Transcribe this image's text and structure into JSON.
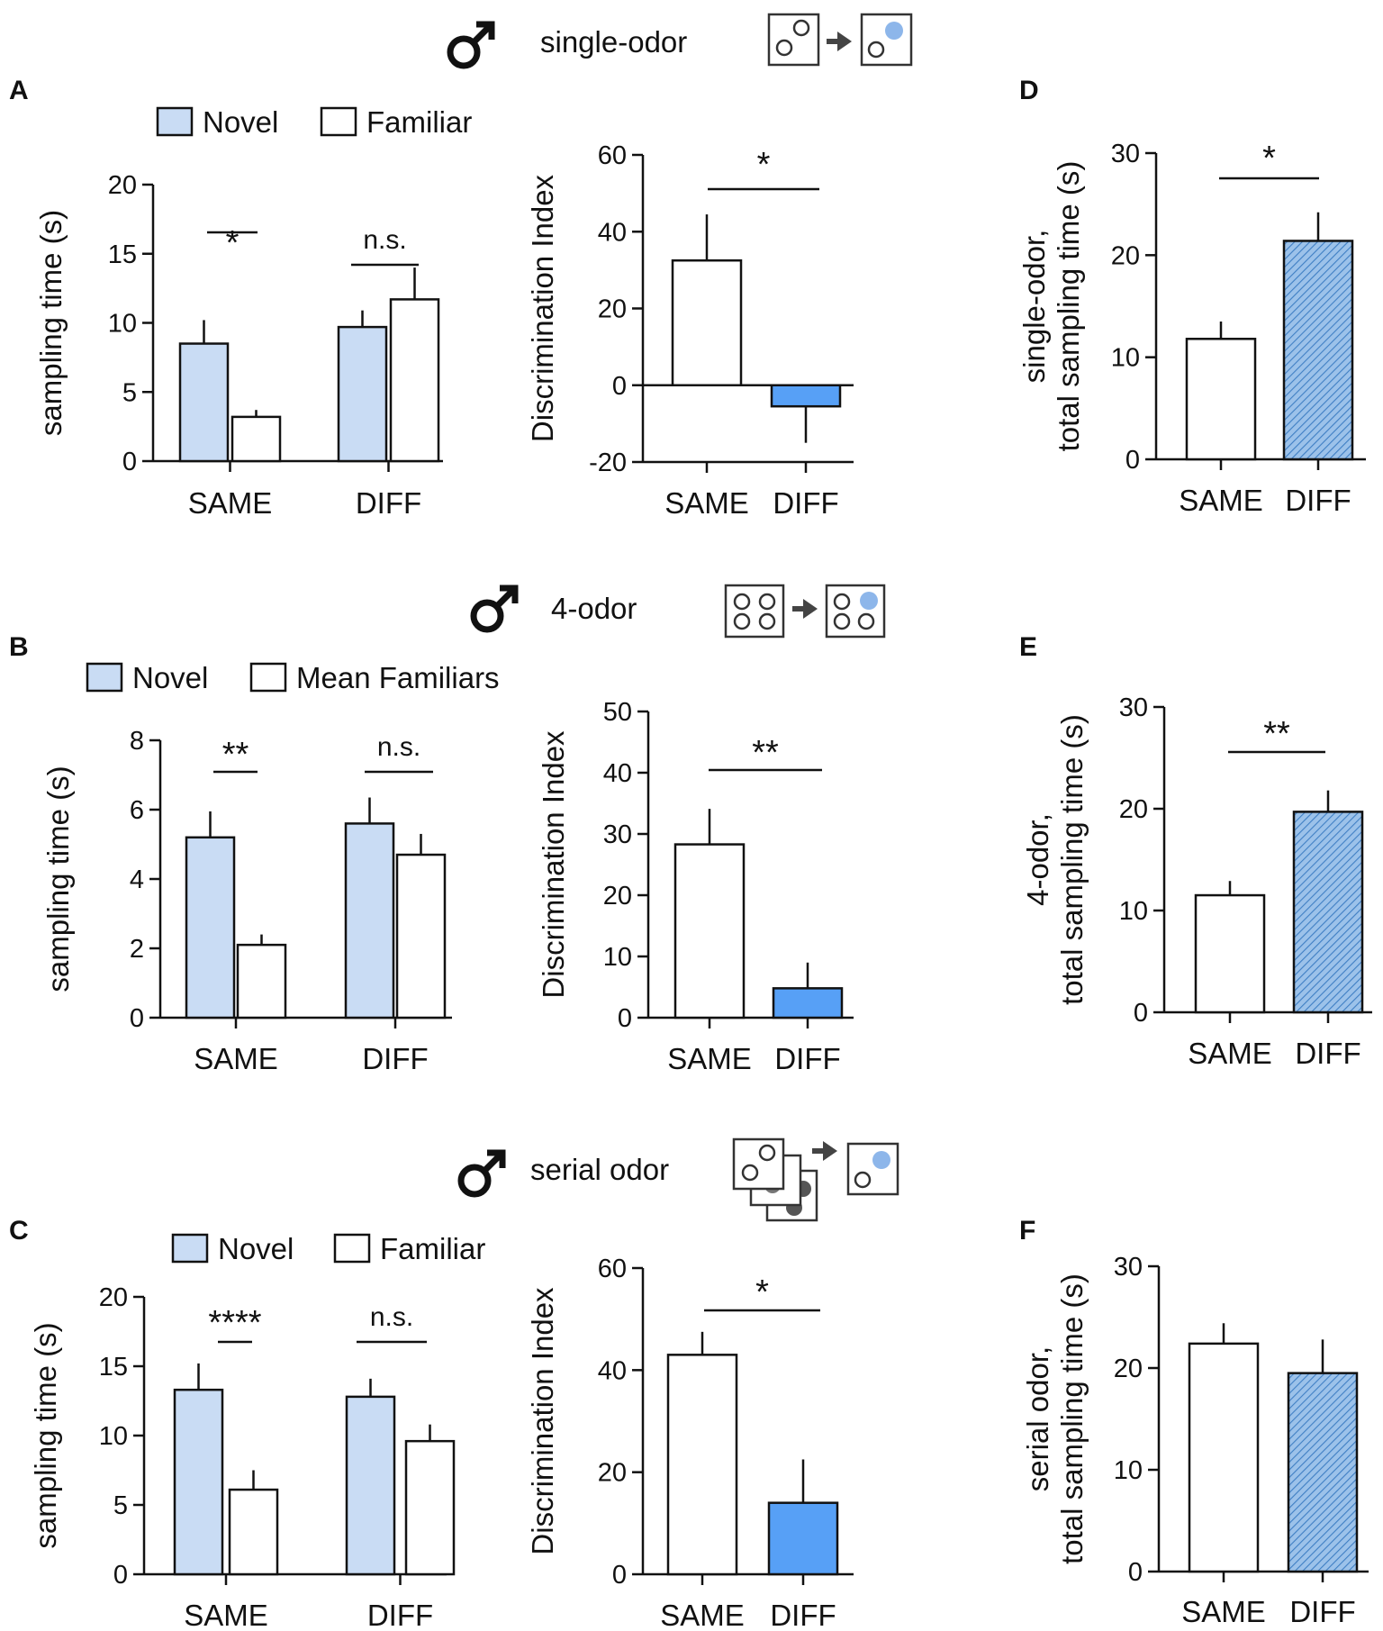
{
  "colors": {
    "novel": "#c9dcf4",
    "familiar": "#ffffff",
    "di_diff": "#57a0f6",
    "hatch_diff": "#9cc2ea",
    "hatch_line": "#3f7fc4",
    "odor_dot": "#8db6ea",
    "stroke": "#111111"
  },
  "headers": [
    {
      "symbol": "♂",
      "text": "single-odor",
      "icon": "single-odor-schematic"
    },
    {
      "symbol": "♂",
      "text": "4-odor",
      "icon": "4-odor-schematic"
    },
    {
      "symbol": "♂",
      "text": "serial odor",
      "icon": "serial-odor-schematic"
    }
  ],
  "chart_data": [
    {
      "panel": "A",
      "type": "bar",
      "title": "",
      "ylabel": "sampling time (s)",
      "ylim": [
        0,
        20
      ],
      "yticks": [
        0,
        5,
        10,
        15,
        20
      ],
      "categories": [
        "SAME",
        "DIFF"
      ],
      "legend": [
        "Novel",
        "Familiar"
      ],
      "series": [
        {
          "name": "Novel",
          "values": [
            8.5,
            9.7
          ],
          "errors": [
            1.7,
            1.2
          ]
        },
        {
          "name": "Familiar",
          "values": [
            3.2,
            11.7
          ],
          "errors": [
            0.5,
            2.3
          ]
        }
      ],
      "annotations": [
        "*",
        "n.s."
      ]
    },
    {
      "panel": "A",
      "type": "bar",
      "ylabel": "Discrimination Index",
      "ylim": [
        -20,
        60
      ],
      "yticks": [
        -20,
        0,
        20,
        40,
        60
      ],
      "categories": [
        "SAME",
        "DIFF"
      ],
      "values": [
        32.5,
        -5.5
      ],
      "errors": [
        12,
        9.5
      ],
      "annotations": [
        "*"
      ]
    },
    {
      "panel": "D",
      "type": "bar",
      "ylabel": [
        "single-odor,",
        "total sampling time (s)"
      ],
      "ylim": [
        0,
        30
      ],
      "yticks": [
        0,
        10,
        20,
        30
      ],
      "categories": [
        "SAME",
        "DIFF"
      ],
      "values": [
        11.8,
        21.4
      ],
      "errors": [
        1.7,
        2.8
      ],
      "annotations": [
        "*"
      ]
    },
    {
      "panel": "B",
      "type": "bar",
      "ylabel": "sampling time (s)",
      "ylim": [
        0,
        8
      ],
      "yticks": [
        0,
        2,
        4,
        6,
        8
      ],
      "categories": [
        "SAME",
        "DIFF"
      ],
      "legend": [
        "Novel",
        "Mean Familiars"
      ],
      "series": [
        {
          "name": "Novel",
          "values": [
            5.2,
            5.6
          ],
          "errors": [
            0.75,
            0.75
          ]
        },
        {
          "name": "Mean Familiars",
          "values": [
            2.1,
            4.7
          ],
          "errors": [
            0.3,
            0.6
          ]
        }
      ],
      "annotations": [
        "**",
        "n.s."
      ]
    },
    {
      "panel": "B",
      "type": "bar",
      "ylabel": "Discrimination Index",
      "ylim": [
        0,
        50
      ],
      "yticks": [
        0,
        10,
        20,
        30,
        40,
        50
      ],
      "categories": [
        "SAME",
        "DIFF"
      ],
      "values": [
        28.3,
        4.8
      ],
      "errors": [
        5.8,
        4.2
      ],
      "annotations": [
        "**"
      ]
    },
    {
      "panel": "E",
      "type": "bar",
      "ylabel": [
        "4-odor,",
        "total sampling time (s)"
      ],
      "ylim": [
        0,
        30
      ],
      "yticks": [
        0,
        10,
        20,
        30
      ],
      "categories": [
        "SAME",
        "DIFF"
      ],
      "values": [
        11.5,
        19.7
      ],
      "errors": [
        1.4,
        2.1
      ],
      "annotations": [
        "**"
      ]
    },
    {
      "panel": "C",
      "type": "bar",
      "ylabel": "sampling time (s)",
      "ylim": [
        0,
        20
      ],
      "yticks": [
        0,
        5,
        10,
        15,
        20
      ],
      "categories": [
        "SAME",
        "DIFF"
      ],
      "legend": [
        "Novel",
        "Familiar"
      ],
      "series": [
        {
          "name": "Novel",
          "values": [
            13.3,
            12.8
          ],
          "errors": [
            1.9,
            1.3
          ]
        },
        {
          "name": "Familiar",
          "values": [
            6.1,
            9.6
          ],
          "errors": [
            1.4,
            1.2
          ]
        }
      ],
      "annotations": [
        "****",
        "n.s."
      ]
    },
    {
      "panel": "C",
      "type": "bar",
      "ylabel": "Discrimination Index",
      "ylim": [
        0,
        60
      ],
      "yticks": [
        0,
        20,
        40,
        60
      ],
      "categories": [
        "SAME",
        "DIFF"
      ],
      "values": [
        43,
        14
      ],
      "errors": [
        4.5,
        8.5
      ],
      "annotations": [
        "*"
      ]
    },
    {
      "panel": "F",
      "type": "bar",
      "ylabel": [
        "serial odor,",
        "total sampling time (s)"
      ],
      "ylim": [
        0,
        30
      ],
      "yticks": [
        0,
        10,
        20,
        30
      ],
      "categories": [
        "SAME",
        "DIFF"
      ],
      "values": [
        22.4,
        19.5
      ],
      "errors": [
        2,
        3.3
      ],
      "annotations": []
    }
  ]
}
